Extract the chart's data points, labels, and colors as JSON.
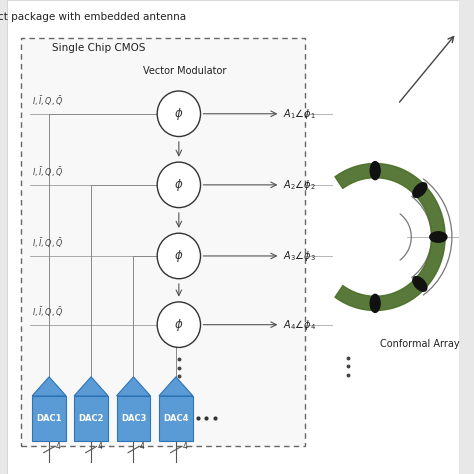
{
  "title": "ct package with embedded antenna",
  "bg_color": "#e8e8e8",
  "chip_label": "Single Chip CMOS",
  "vm_label": "Vector Modulator",
  "conformal_label": "Conformal Array",
  "output_labels": [
    "$A_1\\angle\\phi_1$",
    "$A_2\\angle\\phi_2$",
    "$A_3\\angle\\phi_3$",
    "$A_4\\angle\\phi_4$"
  ],
  "dac_labels": [
    "DAC1",
    "DAC2",
    "DAC3",
    "DAC4"
  ],
  "dac_color": "#5b9bd5",
  "dac_edge_color": "#2e75b6",
  "antenna_color": "#4a6e28",
  "patch_color": "#111111",
  "wave_color": "#777777",
  "line_color": "#999999",
  "circle_color": "#ffffff",
  "circle_edge": "#333333",
  "text_color": "#222222",
  "box_edge_color": "#666666"
}
